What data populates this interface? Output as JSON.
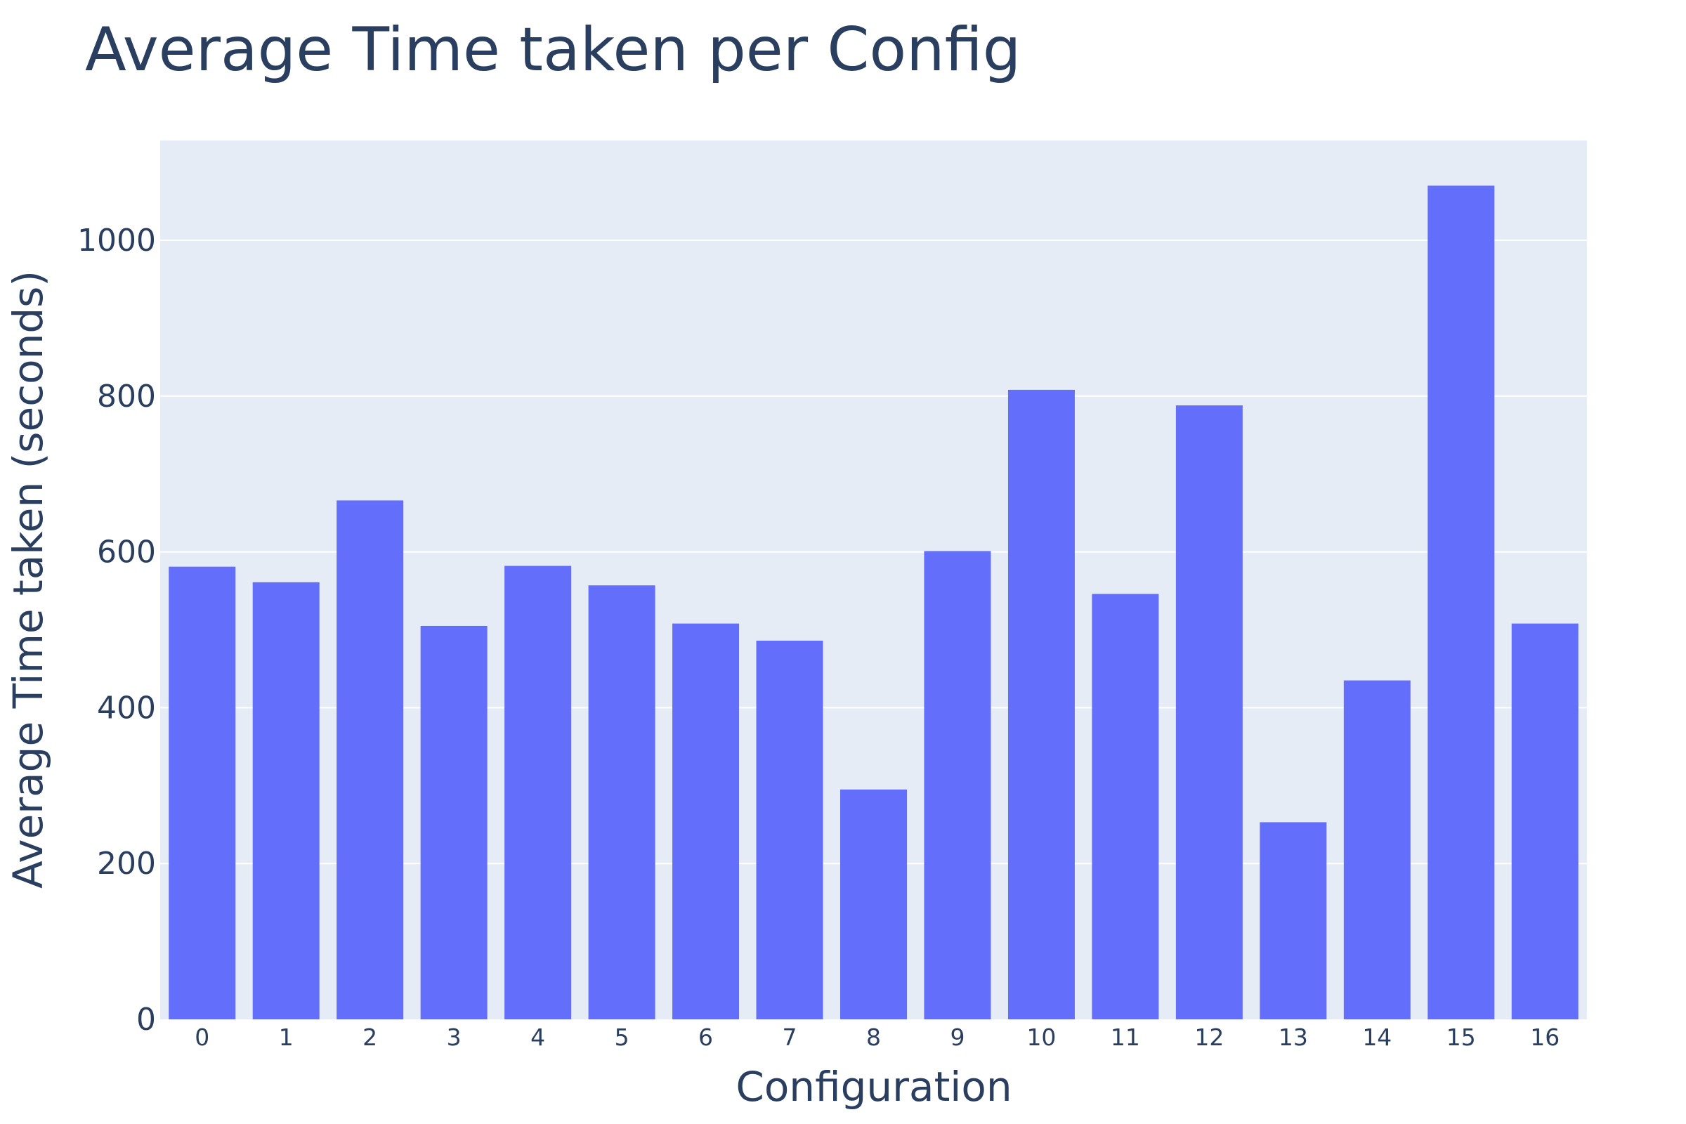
{
  "chart_data": {
    "type": "bar",
    "title": "Average Time taken per Config",
    "xlabel": "Configuration",
    "ylabel": "Average Time taken (seconds)",
    "categories": [
      "0",
      "1",
      "2",
      "3",
      "4",
      "5",
      "6",
      "7",
      "8",
      "9",
      "10",
      "11",
      "12",
      "13",
      "14",
      "15",
      "16"
    ],
    "values": [
      581,
      561,
      666,
      505,
      582,
      557,
      508,
      486,
      295,
      601,
      808,
      546,
      788,
      253,
      435,
      1070,
      508
    ],
    "yticks": [
      0,
      200,
      400,
      600,
      800,
      1000
    ],
    "ylim": [
      0,
      1128
    ],
    "grid": true,
    "colors": {
      "bar": "#636efa",
      "plot_background": "#e5ecf6",
      "gridline": "#ffffff",
      "text": "#2a3f5f"
    }
  }
}
